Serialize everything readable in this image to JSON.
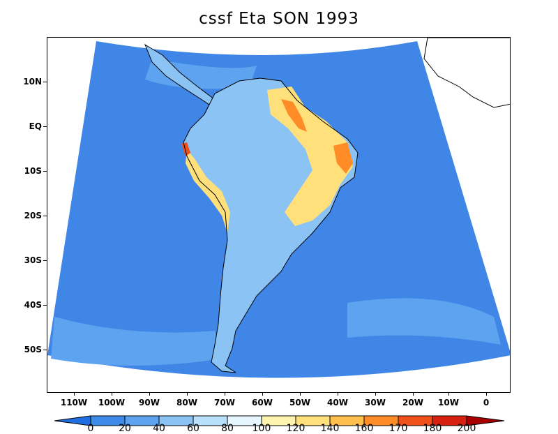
{
  "title": "cssf Eta SON 1993",
  "axes": {
    "lat_labels": [
      "10N",
      "EQ",
      "10S",
      "20S",
      "30S",
      "40S",
      "50S"
    ],
    "lon_labels": [
      "110W",
      "100W",
      "90W",
      "80W",
      "70W",
      "60W",
      "50W",
      "40W",
      "30W",
      "20W",
      "10W",
      "0"
    ]
  },
  "colorbar": {
    "labels": [
      "0",
      "20",
      "40",
      "60",
      "80",
      "100",
      "120",
      "140",
      "160",
      "170",
      "180",
      "200"
    ],
    "colors": [
      "#1f6fe0",
      "#3d8ae8",
      "#5ea3ef",
      "#8cc3f5",
      "#b8e0fa",
      "#e6f6ff",
      "#fff3b0",
      "#ffe07a",
      "#ffbf4d",
      "#ff8c26",
      "#f0501a",
      "#d82010",
      "#a80000"
    ]
  },
  "map": {
    "ocean_color": "#3f86e6",
    "ocean_light_color": "#5ea3ef",
    "land_color": "#8cc3f5",
    "land_light_color": "#b8e0fa",
    "high_color": "#ffe07a",
    "hot_color": "#ff8c26",
    "extreme_color": "#f0501a",
    "outside_color": "#ffffff"
  }
}
